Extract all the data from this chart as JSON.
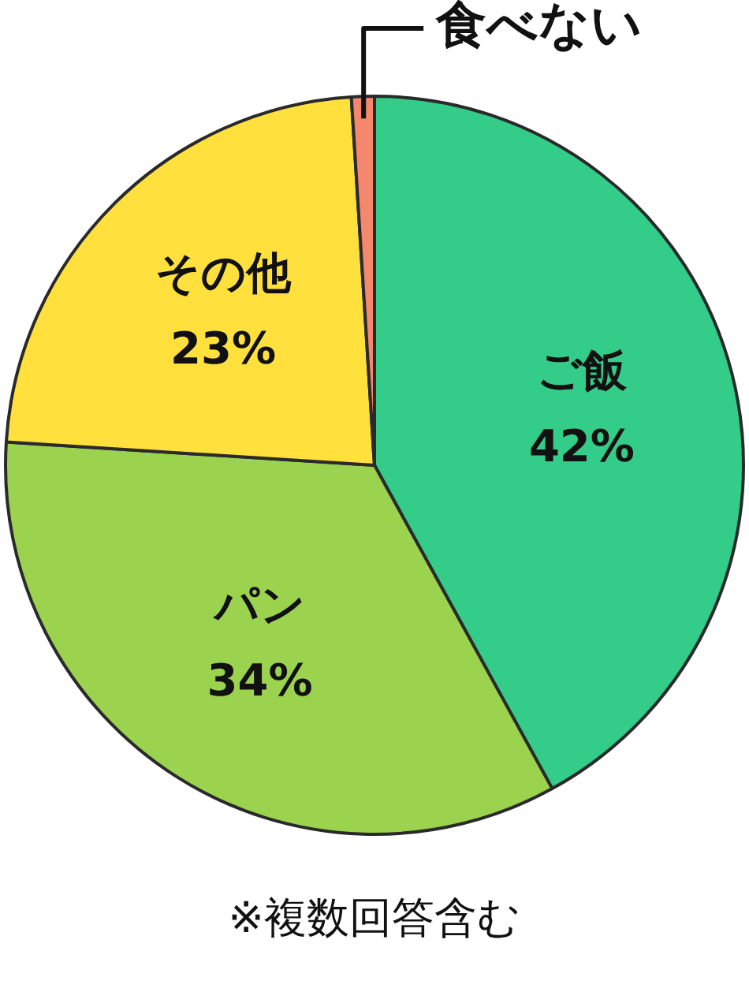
{
  "chart_data": {
    "type": "pie",
    "categories": [
      "ご飯",
      "パン",
      "その他",
      "食べない"
    ],
    "values": [
      42,
      34,
      23,
      1
    ],
    "colors": [
      "#33cc88",
      "#9bd34f",
      "#ffe03c",
      "#f4876e"
    ],
    "value_labels": [
      "42%",
      "34%",
      "23%",
      null
    ],
    "annotations": [
      "※複数回答含む"
    ],
    "legend": false
  }
}
